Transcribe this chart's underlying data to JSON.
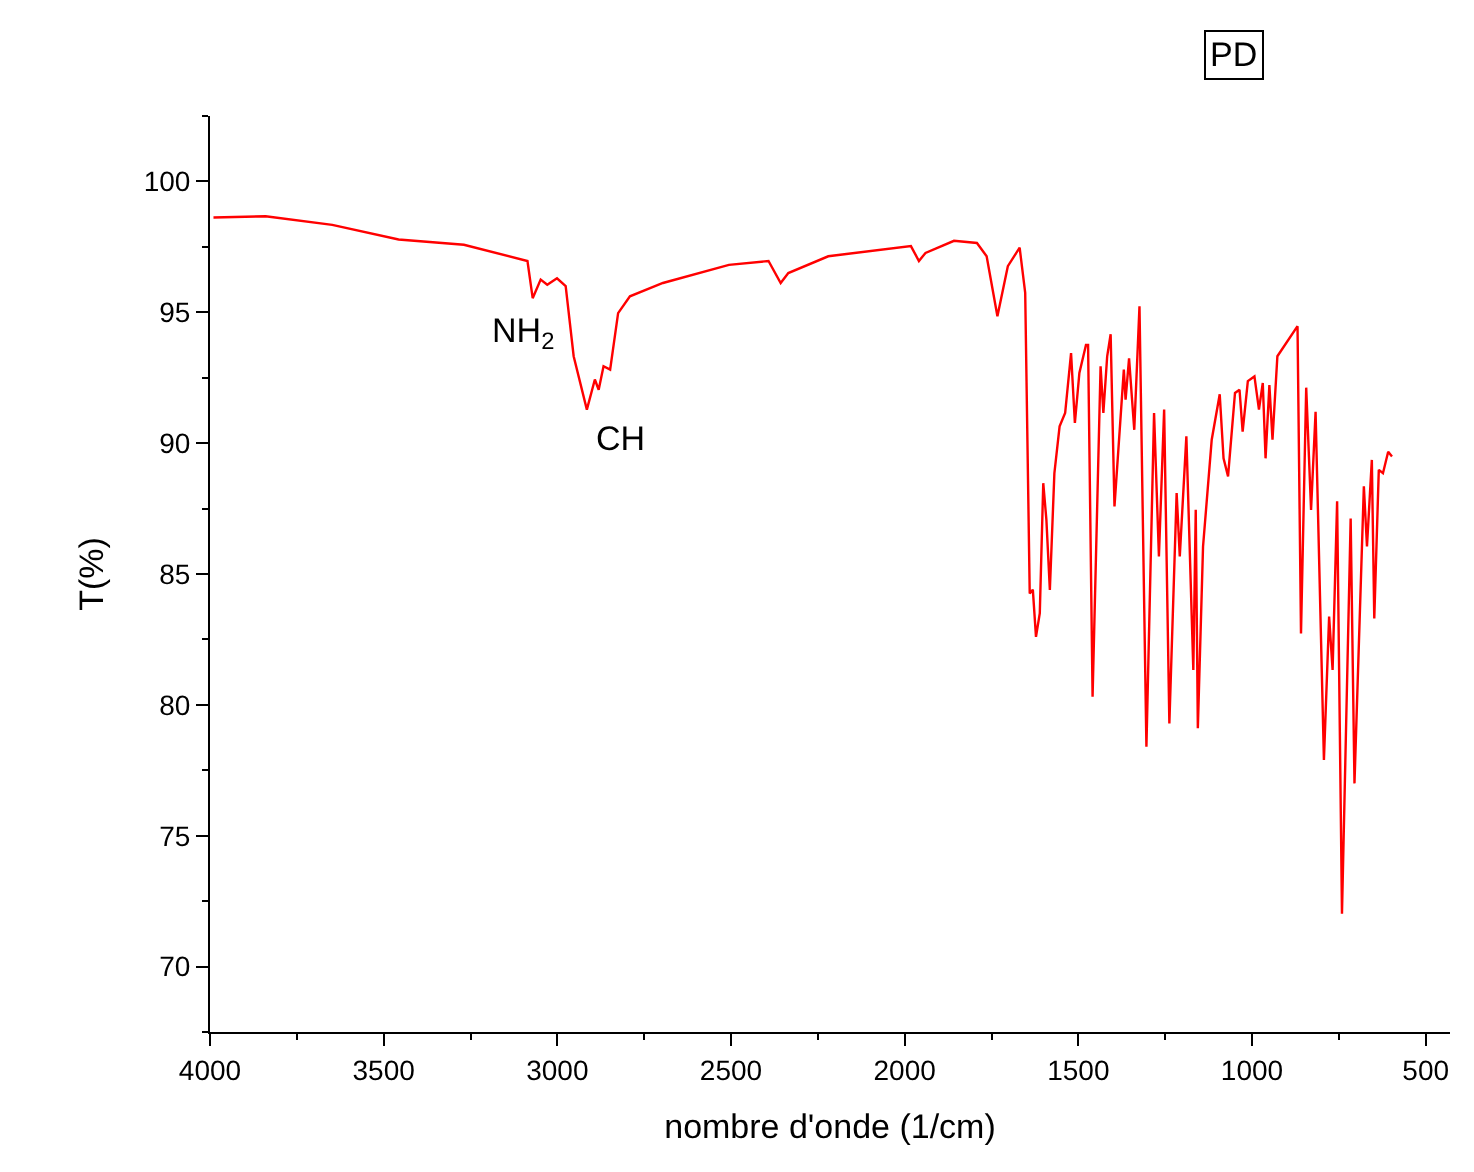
{
  "chart_data": {
    "type": "line",
    "xlabel": "nombre d'onde (1/cm)",
    "ylabel": "T(%)",
    "xlim": [
      4000,
      430
    ],
    "ylim": [
      67.5,
      102.5
    ],
    "xticks": [
      4000,
      3500,
      3000,
      2500,
      2000,
      1500,
      1000,
      500
    ],
    "yticks": [
      70,
      75,
      80,
      85,
      90,
      95,
      100
    ],
    "marker": "none",
    "line_style": "solid",
    "annotations": [
      "NH$_{2}$",
      "CH",
      "PD"
    ],
    "series": [
      {
        "color": "#ff0000",
        "x": [
          3990,
          3840,
          3648,
          3457,
          3269,
          3086,
          3071,
          3048,
          3029,
          3001,
          2976,
          2953,
          2915,
          2892,
          2881,
          2867,
          2848,
          2825,
          2791,
          2696,
          2506,
          2392,
          2357,
          2335,
          2220,
          1982,
          1959,
          1940,
          1858,
          1792,
          1764,
          1733,
          1703,
          1669,
          1653,
          1640,
          1631,
          1622,
          1611,
          1601,
          1592,
          1582,
          1569,
          1554,
          1538,
          1521,
          1510,
          1497,
          1478,
          1472,
          1459,
          1436,
          1428,
          1417,
          1407,
          1396,
          1369,
          1364,
          1354,
          1339,
          1324,
          1304,
          1282,
          1268,
          1253,
          1238,
          1217,
          1208,
          1189,
          1169,
          1162,
          1156,
          1141,
          1116,
          1093,
          1082,
          1069,
          1049,
          1036,
          1027,
          1012,
          993,
          980,
          969,
          961,
          950,
          941,
          927,
          869,
          859,
          844,
          830,
          817,
          793,
          778,
          768,
          755,
          741,
          716,
          705,
          678,
          669,
          655,
          648,
          635,
          623,
          608,
          597
        ],
        "values": [
          98.62,
          98.67,
          98.34,
          97.78,
          97.58,
          96.96,
          95.54,
          96.25,
          96.05,
          96.3,
          96.0,
          93.32,
          91.28,
          92.43,
          92.04,
          92.94,
          92.81,
          94.97,
          95.61,
          96.12,
          96.81,
          96.96,
          96.12,
          96.5,
          97.14,
          97.53,
          96.96,
          97.27,
          97.73,
          97.65,
          97.14,
          94.85,
          96.76,
          97.47,
          95.74,
          84.26,
          84.4,
          82.6,
          83.5,
          88.47,
          87.07,
          84.39,
          88.85,
          90.64,
          91.15,
          93.44,
          90.77,
          92.68,
          93.75,
          93.75,
          80.31,
          92.94,
          91.15,
          93.32,
          94.16,
          87.58,
          92.81,
          91.66,
          93.24,
          90.51,
          95.23,
          78.4,
          91.15,
          85.67,
          91.28,
          79.29,
          88.09,
          85.67,
          90.26,
          81.33,
          87.45,
          79.11,
          86.05,
          90.13,
          91.87,
          89.42,
          88.73,
          91.92,
          92.04,
          90.44,
          92.37,
          92.55,
          91.28,
          92.3,
          89.42,
          92.22,
          90.13,
          93.32,
          94.47,
          82.73,
          92.12,
          87.45,
          91.2,
          77.89,
          83.37,
          81.33,
          87.78,
          72.02,
          87.12,
          77.0,
          88.35,
          86.05,
          89.36,
          83.3,
          88.98,
          88.85,
          89.67,
          89.49
        ]
      }
    ]
  }
}
